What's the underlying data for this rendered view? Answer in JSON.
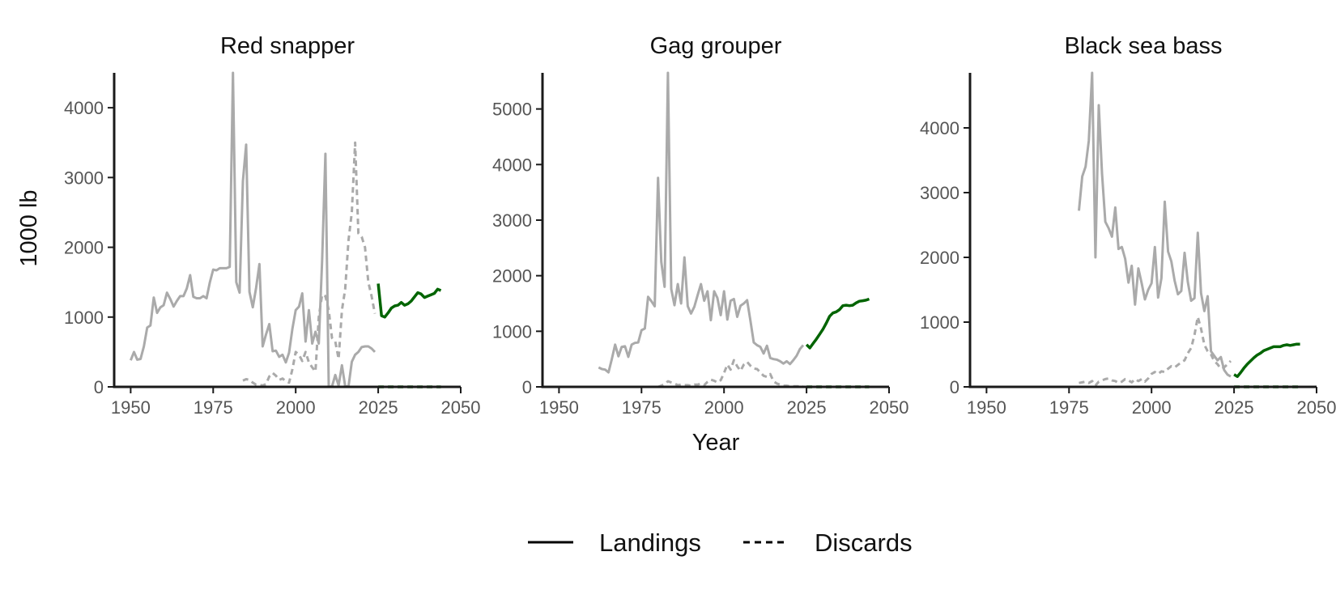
{
  "chart_data": {
    "type": "line",
    "xlabel": "Year",
    "ylabel": "1000 lb",
    "legend": {
      "position": "bottom",
      "entries": [
        {
          "label": "Landings",
          "linestyle": "solid"
        },
        {
          "label": "Discards",
          "linestyle": "dashed"
        }
      ]
    },
    "colors": {
      "historical": "#aaaaaa",
      "projection": "#006400",
      "axis": "#1a1a1a"
    },
    "grid": false,
    "panels": [
      {
        "title": "Red snapper",
        "xlim": [
          1945,
          2050
        ],
        "ylim": [
          0,
          4500
        ],
        "xticks": [
          1950,
          1975,
          2000,
          2025,
          2050
        ],
        "yticks": [
          0,
          1000,
          2000,
          3000,
          4000
        ],
        "series": [
          {
            "kind": "historical_landings",
            "x": [
              1950,
              1951,
              1952,
              1953,
              1954,
              1955,
              1956,
              1957,
              1958,
              1959,
              1960,
              1961,
              1962,
              1963,
              1964,
              1965,
              1966,
              1967,
              1968,
              1969,
              1970,
              1971,
              1972,
              1973,
              1974,
              1975,
              1976,
              1977,
              1978,
              1979,
              1980,
              1981,
              1982,
              1983,
              1984,
              1985,
              1986,
              1987,
              1988,
              1989,
              1990,
              1991,
              1992,
              1993,
              1994,
              1995,
              1996,
              1997,
              1998,
              1999,
              2000,
              2001,
              2002,
              2003,
              2004,
              2005,
              2006,
              2007,
              2008,
              2009,
              2010,
              2011,
              2012,
              2013,
              2014,
              2015,
              2016,
              2017,
              2018,
              2019,
              2020,
              2021,
              2022,
              2023,
              2024
            ],
            "y": [
              380,
              500,
              390,
              400,
              580,
              850,
              880,
              1280,
              1060,
              1140,
              1170,
              1350,
              1260,
              1150,
              1230,
              1300,
              1300,
              1410,
              1600,
              1290,
              1270,
              1270,
              1300,
              1270,
              1500,
              1680,
              1670,
              1700,
              1700,
              1700,
              1720,
              4500,
              1500,
              1350,
              2950,
              3470,
              1360,
              1140,
              1420,
              1760,
              580,
              750,
              900,
              510,
              520,
              430,
              460,
              350,
              490,
              830,
              1100,
              1150,
              1340,
              650,
              1100,
              620,
              790,
              620,
              1800,
              3340,
              5,
              5,
              170,
              20,
              310,
              10,
              5,
              360,
              460,
              500,
              570,
              580,
              580,
              550,
              500
            ]
          },
          {
            "kind": "historical_discards",
            "x": [
              1984,
              1985,
              1986,
              1987,
              1988,
              1989,
              1990,
              1991,
              1992,
              1993,
              1994,
              1995,
              1996,
              1997,
              1998,
              1999,
              2000,
              2001,
              2002,
              2003,
              2004,
              2005,
              2006,
              2007,
              2008,
              2009,
              2010,
              2011,
              2012,
              2013,
              2014,
              2015,
              2016,
              2017,
              2018,
              2019,
              2020,
              2021,
              2022,
              2023,
              2024
            ],
            "y": [
              90,
              110,
              100,
              60,
              30,
              30,
              20,
              40,
              150,
              200,
              160,
              100,
              120,
              80,
              60,
              250,
              500,
              460,
              370,
              500,
              350,
              280,
              220,
              1000,
              1320,
              1300,
              1100,
              700,
              650,
              400,
              1100,
              1400,
              2100,
              2500,
              3500,
              2200,
              2150,
              2000,
              1500,
              1300,
              1050
            ]
          },
          {
            "kind": "projected_landings",
            "x": [
              2025,
              2026,
              2027,
              2028,
              2029,
              2030,
              2031,
              2032,
              2033,
              2034,
              2035,
              2036,
              2037,
              2038,
              2039,
              2040,
              2041,
              2042,
              2043,
              2044
            ],
            "y": [
              1480,
              1020,
              1000,
              1060,
              1130,
              1160,
              1170,
              1210,
              1170,
              1190,
              1230,
              1290,
              1350,
              1330,
              1280,
              1300,
              1320,
              1340,
              1400,
              1380
            ]
          },
          {
            "kind": "projected_discards",
            "x": [
              2025,
              2044
            ],
            "y": [
              0,
              0
            ]
          }
        ]
      },
      {
        "title": "Gag grouper",
        "xlim": [
          1945,
          2050
        ],
        "ylim": [
          0,
          5650
        ],
        "xticks": [
          1950,
          1975,
          2000,
          2025,
          2050
        ],
        "yticks": [
          0,
          1000,
          2000,
          3000,
          4000,
          5000
        ],
        "series": [
          {
            "kind": "historical_landings",
            "x": [
              1962,
              1963,
              1964,
              1965,
              1966,
              1967,
              1968,
              1969,
              1970,
              1971,
              1972,
              1973,
              1974,
              1975,
              1976,
              1977,
              1978,
              1979,
              1980,
              1981,
              1982,
              1983,
              1984,
              1985,
              1986,
              1987,
              1988,
              1989,
              1990,
              1991,
              1992,
              1993,
              1994,
              1995,
              1996,
              1997,
              1998,
              1999,
              2000,
              2001,
              2002,
              2003,
              2004,
              2005,
              2006,
              2007,
              2008,
              2009,
              2010,
              2011,
              2012,
              2013,
              2014,
              2015,
              2016,
              2017,
              2018,
              2019,
              2020,
              2021,
              2022,
              2023,
              2024
            ],
            "y": [
              350,
              320,
              310,
              260,
              500,
              760,
              550,
              720,
              730,
              540,
              760,
              790,
              800,
              1020,
              1050,
              1620,
              1540,
              1450,
              3760,
              2250,
              1800,
              5650,
              1760,
              1470,
              1850,
              1500,
              2330,
              1450,
              1320,
              1440,
              1650,
              1850,
              1550,
              1720,
              1200,
              1720,
              1600,
              1290,
              1720,
              1210,
              1550,
              1580,
              1260,
              1460,
              1500,
              1560,
              1190,
              800,
              750,
              720,
              600,
              740,
              520,
              500,
              490,
              460,
              420,
              460,
              410,
              480,
              560,
              680,
              750
            ]
          },
          {
            "kind": "historical_discards",
            "x": [
              1980,
              1981,
              1982,
              1983,
              1984,
              1985,
              1986,
              1987,
              1988,
              1989,
              1990,
              1991,
              1992,
              1993,
              1994,
              1995,
              1996,
              1997,
              1998,
              1999,
              2000,
              2001,
              2002,
              2003,
              2004,
              2005,
              2006,
              2007,
              2008,
              2009,
              2010,
              2011,
              2012,
              2013,
              2014,
              2015,
              2016,
              2017,
              2018,
              2019,
              2020,
              2021,
              2022,
              2023,
              2024
            ],
            "y": [
              0,
              20,
              50,
              100,
              80,
              60,
              30,
              40,
              30,
              30,
              20,
              40,
              40,
              60,
              30,
              90,
              130,
              110,
              80,
              120,
              250,
              400,
              310,
              480,
              370,
              290,
              400,
              450,
              380,
              330,
              320,
              260,
              200,
              180,
              230,
              100,
              60,
              40,
              20,
              20,
              10,
              10,
              10,
              10,
              10
            ]
          },
          {
            "kind": "projected_landings",
            "x": [
              2025,
              2026,
              2027,
              2028,
              2029,
              2030,
              2031,
              2032,
              2033,
              2034,
              2035,
              2036,
              2037,
              2038,
              2039,
              2040,
              2041,
              2042,
              2043,
              2044
            ],
            "y": [
              760,
              700,
              780,
              860,
              950,
              1040,
              1150,
              1270,
              1330,
              1350,
              1390,
              1460,
              1470,
              1460,
              1470,
              1510,
              1540,
              1550,
              1560,
              1580
            ]
          },
          {
            "kind": "projected_discards",
            "x": [
              2025,
              2044
            ],
            "y": [
              0,
              0
            ]
          }
        ]
      },
      {
        "title": "Black sea bass",
        "xlim": [
          1945,
          2050
        ],
        "ylim": [
          0,
          4850
        ],
        "xticks": [
          1950,
          1975,
          2000,
          2025,
          2050
        ],
        "yticks": [
          0,
          1000,
          2000,
          3000,
          4000
        ],
        "series": [
          {
            "kind": "historical_landings",
            "x": [
              1978,
              1979,
              1980,
              1981,
              1982,
              1983,
              1984,
              1985,
              1986,
              1987,
              1988,
              1989,
              1990,
              1991,
              1992,
              1993,
              1994,
              1995,
              1996,
              1997,
              1998,
              1999,
              2000,
              2001,
              2002,
              2003,
              2004,
              2005,
              2006,
              2007,
              2008,
              2009,
              2010,
              2011,
              2012,
              2013,
              2014,
              2015,
              2016,
              2017,
              2018,
              2019,
              2020,
              2021,
              2022,
              2023,
              2024
            ],
            "y": [
              2720,
              3250,
              3400,
              3800,
              4850,
              2000,
              4350,
              3300,
              2550,
              2450,
              2320,
              2770,
              2130,
              2160,
              1980,
              1610,
              1870,
              1270,
              1830,
              1600,
              1350,
              1500,
              1600,
              2160,
              1380,
              1680,
              2860,
              2090,
              1940,
              1640,
              1430,
              1480,
              2070,
              1620,
              1330,
              1370,
              2380,
              1450,
              1170,
              1400,
              550,
              480,
              410,
              460,
              260,
              190,
              160
            ]
          },
          {
            "kind": "historical_discards",
            "x": [
              1978,
              1979,
              1980,
              1981,
              1982,
              1983,
              1984,
              1985,
              1986,
              1987,
              1988,
              1989,
              1990,
              1991,
              1992,
              1993,
              1994,
              1995,
              1996,
              1997,
              1998,
              1999,
              2000,
              2001,
              2002,
              2003,
              2004,
              2005,
              2006,
              2007,
              2008,
              2009,
              2010,
              2011,
              2012,
              2013,
              2014,
              2015,
              2016,
              2017,
              2018,
              2019,
              2020,
              2021,
              2022,
              2023,
              2024
            ],
            "y": [
              60,
              70,
              80,
              60,
              90,
              20,
              80,
              100,
              120,
              130,
              100,
              90,
              60,
              80,
              120,
              100,
              70,
              120,
              90,
              120,
              80,
              130,
              200,
              230,
              200,
              240,
              230,
              280,
              320,
              300,
              340,
              380,
              410,
              520,
              600,
              800,
              1080,
              900,
              650,
              550,
              500,
              400,
              350,
              280,
              300,
              350,
              400
            ]
          },
          {
            "kind": "projected_landings",
            "x": [
              2025,
              2026,
              2027,
              2028,
              2029,
              2030,
              2031,
              2032,
              2033,
              2034,
              2035,
              2036,
              2037,
              2038,
              2039,
              2040,
              2041,
              2042,
              2043,
              2044,
              2045
            ],
            "y": [
              190,
              160,
              220,
              290,
              350,
              400,
              450,
              490,
              520,
              560,
              580,
              600,
              620,
              620,
              620,
              640,
              650,
              640,
              650,
              660,
              660
            ]
          },
          {
            "kind": "projected_discards",
            "x": [
              2025,
              2045
            ],
            "y": [
              0,
              0
            ]
          }
        ]
      }
    ]
  }
}
